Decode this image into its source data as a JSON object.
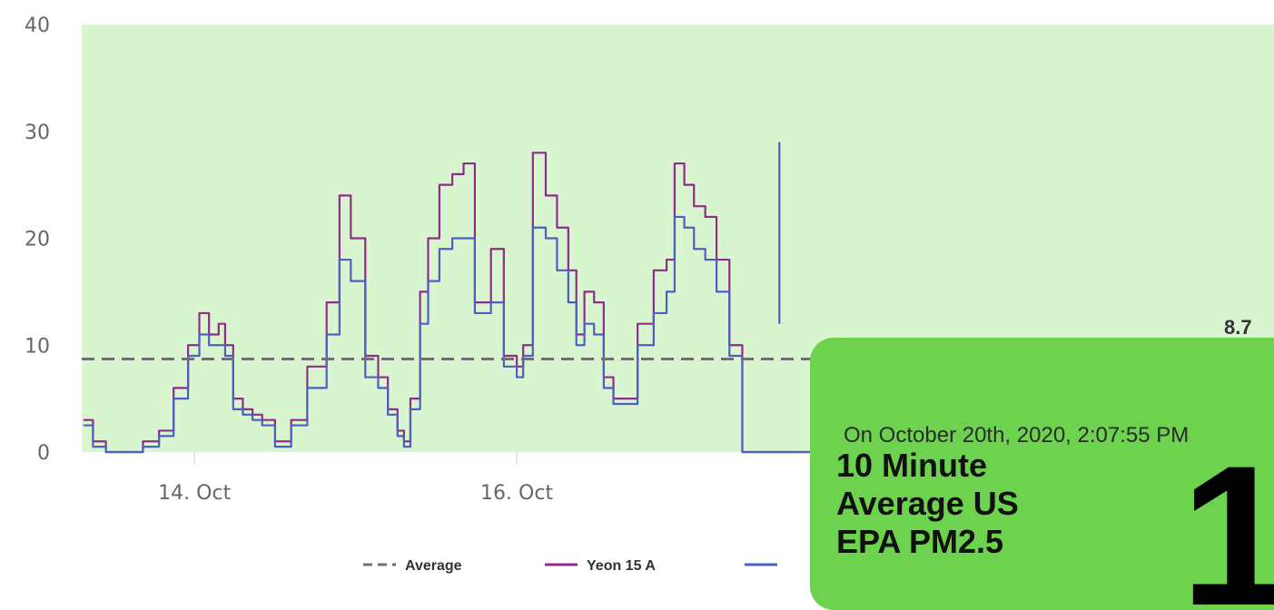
{
  "chart_data": {
    "type": "line",
    "title": "",
    "xlabel": "",
    "ylabel": "",
    "ylim": [
      0,
      40
    ],
    "y_ticks": [
      "40",
      "30",
      "20",
      "10",
      "0"
    ],
    "x_ticks": [
      {
        "label": "14. Oct",
        "value": 14.0
      },
      {
        "label": "16. Oct",
        "value": 16.0
      }
    ],
    "xlim": [
      13.3,
      20.7
    ],
    "background_band": {
      "from": 0,
      "to": 40,
      "color": "#d9f5d0"
    },
    "average_value": 8.7,
    "average_label": "8.7",
    "legend_placement": "bottom",
    "legend": [
      {
        "name": "Average",
        "color": "#707070",
        "style": "dashed"
      },
      {
        "name": "Yeon 15 A",
        "color": "#8e2c8a",
        "style": "solid"
      },
      {
        "name": "",
        "color": "#4d5fc0",
        "style": "solid"
      }
    ],
    "series": [
      {
        "name": "Yeon 15 A",
        "color": "#8e2c8a",
        "x": [
          13.31,
          13.37,
          13.45,
          13.6,
          13.68,
          13.78,
          13.87,
          13.96,
          14.03,
          14.09,
          14.15,
          14.19,
          14.24,
          14.3,
          14.36,
          14.42,
          14.5,
          14.6,
          14.7,
          14.82,
          14.9,
          14.97,
          15.06,
          15.14,
          15.2,
          15.26,
          15.3,
          15.34,
          15.4,
          15.45,
          15.52,
          15.6,
          15.67,
          15.74,
          15.84,
          15.92,
          16.0,
          16.04,
          16.1,
          16.18,
          16.25,
          16.32,
          16.37,
          16.42,
          16.48,
          16.54,
          16.6,
          16.67,
          16.75,
          16.85,
          16.93,
          16.98,
          17.04,
          17.1,
          17.17,
          17.24,
          17.32,
          17.4,
          17.48,
          17.56,
          17.63,
          17.7,
          17.78,
          17.86,
          17.93,
          17.99,
          18.05,
          18.13,
          18.21,
          18.28,
          18.34,
          18.4,
          18.47,
          18.53,
          18.58,
          18.64
        ],
        "y": [
          3,
          1,
          0,
          0,
          1,
          2,
          6,
          10,
          13,
          11,
          12,
          10,
          5,
          4,
          3.5,
          3,
          1,
          3,
          8,
          14,
          24,
          20,
          9,
          7,
          4,
          2,
          1,
          5,
          15,
          20,
          25,
          26,
          27,
          14,
          19,
          9,
          8,
          10,
          28,
          24,
          21,
          17,
          11,
          15,
          14,
          7,
          5,
          5,
          12,
          17,
          18,
          27,
          25,
          23,
          22,
          18,
          10,
          0,
          0,
          0,
          0,
          0,
          0,
          0,
          0,
          0,
          0,
          0,
          0,
          0,
          0,
          0,
          0,
          0,
          0,
          0
        ]
      },
      {
        "name": "",
        "color": "#4d5fc0",
        "x": [
          13.31,
          13.37,
          13.45,
          13.6,
          13.68,
          13.78,
          13.87,
          13.96,
          14.03,
          14.09,
          14.15,
          14.19,
          14.24,
          14.3,
          14.36,
          14.42,
          14.5,
          14.6,
          14.7,
          14.82,
          14.9,
          14.97,
          15.06,
          15.14,
          15.2,
          15.26,
          15.3,
          15.34,
          15.4,
          15.45,
          15.52,
          15.6,
          15.67,
          15.74,
          15.84,
          15.92,
          16.0,
          16.04,
          16.1,
          16.18,
          16.25,
          16.32,
          16.37,
          16.42,
          16.48,
          16.54,
          16.6,
          16.67,
          16.75,
          16.85,
          16.93,
          16.98,
          17.04,
          17.1,
          17.17,
          17.24,
          17.32,
          17.4,
          17.48,
          17.56,
          17.63,
          17.7,
          17.78,
          17.86,
          17.93,
          17.99,
          18.05,
          18.13,
          18.21,
          18.28,
          18.34,
          18.4,
          18.47,
          18.53,
          18.58,
          18.64
        ],
        "y": [
          2.5,
          0.5,
          0,
          0,
          0.5,
          1.5,
          5,
          9,
          11,
          10,
          10,
          9,
          4,
          3.5,
          3,
          2.5,
          0.5,
          2.5,
          6,
          11,
          18,
          16,
          7,
          6,
          3.5,
          1.5,
          0.5,
          4,
          12,
          16,
          19,
          20,
          20,
          13,
          14,
          8,
          7,
          9,
          21,
          20,
          17,
          14,
          10,
          12,
          11,
          6,
          4.5,
          4.5,
          10,
          13,
          15,
          22,
          21,
          19,
          18,
          15,
          9,
          0,
          0,
          0,
          0,
          0,
          0,
          0,
          0,
          0,
          0,
          0,
          0,
          0,
          0,
          0,
          0,
          0,
          0,
          0
        ]
      }
    ]
  },
  "popup": {
    "date": "On October 20th, 2020, 2:07:55 PM",
    "label": "10 Minute Average US EPA PM2.5",
    "value": "1"
  }
}
